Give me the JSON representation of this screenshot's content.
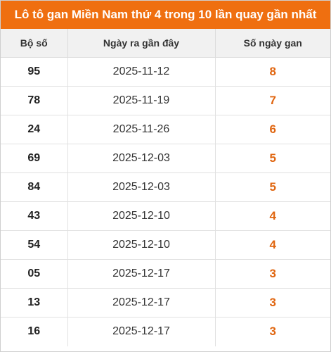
{
  "title": "Lô tô gan Miền Nam thứ 4 trong 10 lần quay gần nhất",
  "colors": {
    "header_bg": "#ef6f10",
    "gan_value": "#e0650f"
  },
  "table": {
    "headers": [
      "Bộ số",
      "Ngày ra gần đây",
      "Số ngày gan"
    ],
    "rows": [
      {
        "number": "95",
        "date": "2025-11-12",
        "gan": "8"
      },
      {
        "number": "78",
        "date": "2025-11-19",
        "gan": "7"
      },
      {
        "number": "24",
        "date": "2025-11-26",
        "gan": "6"
      },
      {
        "number": "69",
        "date": "2025-12-03",
        "gan": "5"
      },
      {
        "number": "84",
        "date": "2025-12-03",
        "gan": "5"
      },
      {
        "number": "43",
        "date": "2025-12-10",
        "gan": "4"
      },
      {
        "number": "54",
        "date": "2025-12-10",
        "gan": "4"
      },
      {
        "number": "05",
        "date": "2025-12-17",
        "gan": "3"
      },
      {
        "number": "13",
        "date": "2025-12-17",
        "gan": "3"
      },
      {
        "number": "16",
        "date": "2025-12-17",
        "gan": "3"
      }
    ]
  }
}
